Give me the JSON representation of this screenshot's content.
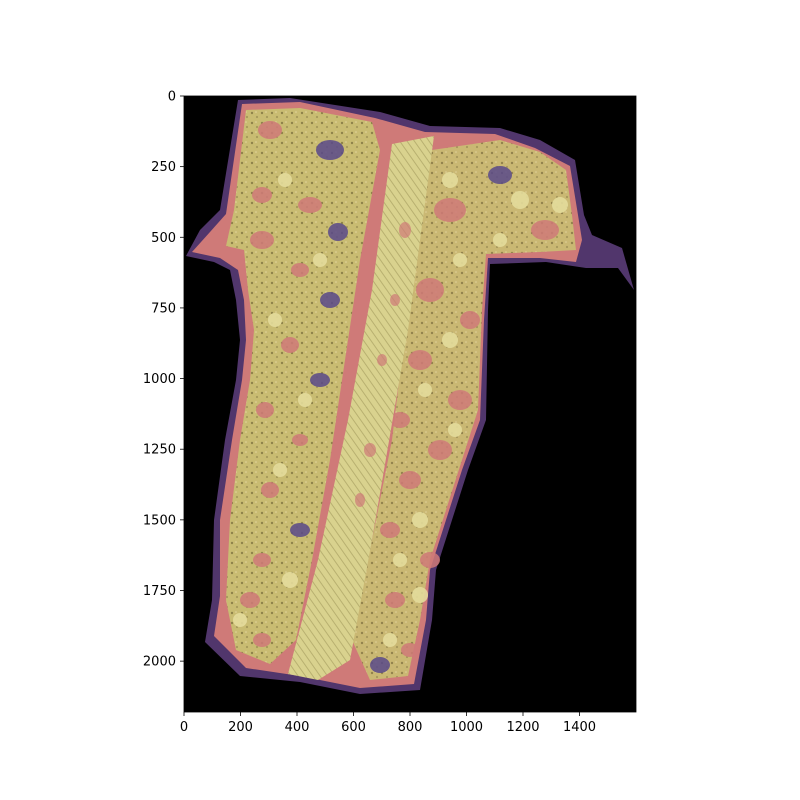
{
  "figure": {
    "type": "image",
    "description_colors": {
      "background": "#000000",
      "tissue_yellow": "#d8d08a",
      "tissue_pink": "#d07878",
      "tissue_purple": "#5a4a8a",
      "edge_red": "#a03050"
    }
  },
  "chart_data": {
    "type": "image",
    "title": "",
    "xlabel": "",
    "ylabel": "",
    "xlim": [
      0,
      1600
    ],
    "ylim": [
      2180,
      0
    ],
    "xticks": [
      0,
      200,
      400,
      600,
      800,
      1000,
      1200,
      1400
    ],
    "yticks": [
      0,
      250,
      500,
      750,
      1000,
      1250,
      1500,
      1750,
      2000
    ],
    "xtick_labels": [
      "0",
      "200",
      "400",
      "600",
      "800",
      "1000",
      "1200",
      "1400"
    ],
    "ytick_labels": [
      "0",
      "250",
      "500",
      "750",
      "1000",
      "1250",
      "1500",
      "1750",
      "2000"
    ]
  }
}
